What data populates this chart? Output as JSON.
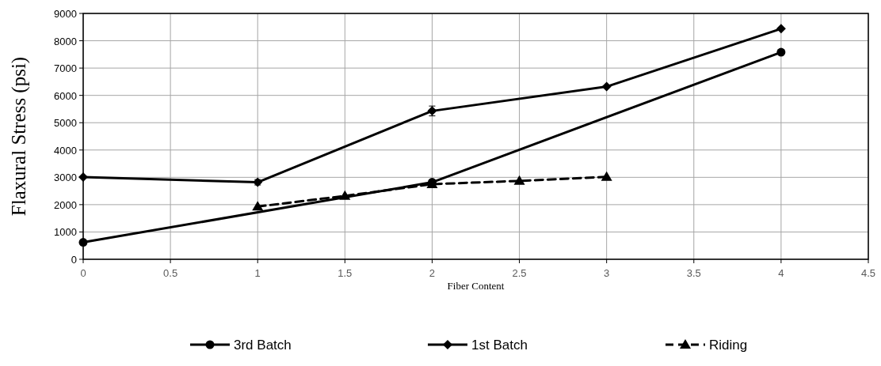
{
  "chart_data": {
    "type": "line",
    "xlabel": "Fiber Content",
    "ylabel": "Flaxural  Stress (psi)",
    "xlim": [
      0,
      4.5
    ],
    "xticks": [
      0,
      0.5,
      1,
      1.5,
      2,
      2.5,
      3,
      3.5,
      4,
      4.5
    ],
    "ylim": [
      0,
      9000
    ],
    "yticks": [
      0,
      1000,
      2000,
      3000,
      4000,
      5000,
      6000,
      7000,
      8000,
      9000
    ],
    "grid": true,
    "legend": "bottom",
    "series": [
      {
        "name": "3rd Batch",
        "color": "#000000",
        "marker": "circle",
        "line_style": "solid",
        "x": [
          0,
          2,
          4
        ],
        "values": [
          620,
          2820,
          7580
        ]
      },
      {
        "name": "1st Batch",
        "color": "#000000",
        "marker": "diamond",
        "line_style": "solid",
        "x": [
          0,
          1,
          2,
          3,
          4
        ],
        "values": [
          3010,
          2820,
          5430,
          6320,
          8440
        ],
        "errors": [
          null,
          100,
          180,
          null,
          null
        ]
      },
      {
        "name": "Riding",
        "color": "#000000",
        "marker": "triangle",
        "line_style": "dashed",
        "x": [
          1,
          1.5,
          2,
          2.5,
          3
        ],
        "values": [
          1930,
          2320,
          2750,
          2870,
          3020
        ]
      }
    ]
  }
}
